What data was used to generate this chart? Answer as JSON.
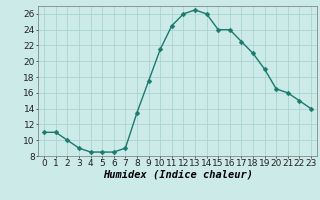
{
  "x": [
    0,
    1,
    2,
    3,
    4,
    5,
    6,
    7,
    8,
    9,
    10,
    11,
    12,
    13,
    14,
    15,
    16,
    17,
    18,
    19,
    20,
    21,
    22,
    23
  ],
  "y": [
    11,
    11,
    10,
    9,
    8.5,
    8.5,
    8.5,
    9,
    13.5,
    17.5,
    21.5,
    24.5,
    26,
    26.5,
    26,
    24,
    24,
    22.5,
    21,
    19,
    16.5,
    16,
    15,
    14
  ],
  "line_color": "#1a7a6e",
  "marker_color": "#1a7a6e",
  "bg_color": "#cceae8",
  "grid_color": "#aad4d2",
  "xlabel": "Humidex (Indice chaleur)",
  "xlim": [
    -0.5,
    23.5
  ],
  "ylim": [
    8,
    27
  ],
  "yticks": [
    8,
    10,
    12,
    14,
    16,
    18,
    20,
    22,
    24,
    26
  ],
  "xticks": [
    0,
    1,
    2,
    3,
    4,
    5,
    6,
    7,
    8,
    9,
    10,
    11,
    12,
    13,
    14,
    15,
    16,
    17,
    18,
    19,
    20,
    21,
    22,
    23
  ],
  "xlabel_fontsize": 7.5,
  "tick_fontsize": 6.5,
  "line_width": 1.0,
  "marker_size": 2.5
}
